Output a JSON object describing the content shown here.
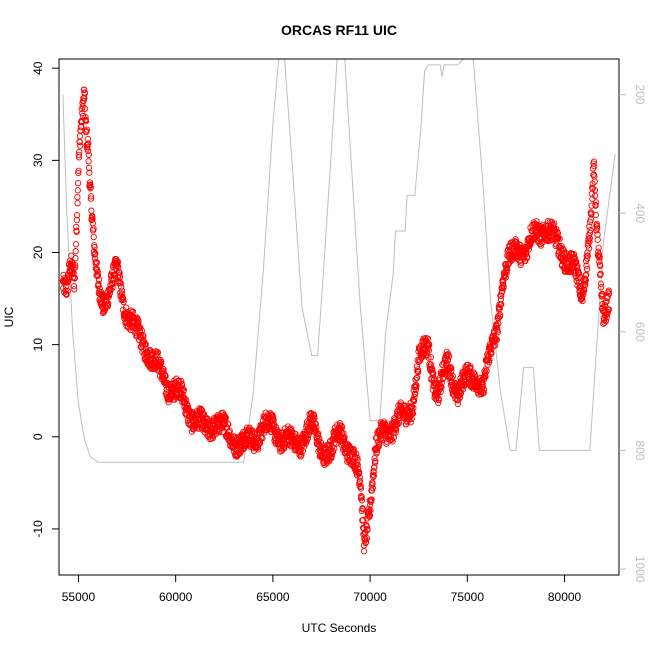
{
  "chart_data": {
    "type": "scatter",
    "title": "ORCAS RF11 UIC",
    "xlabel": "UTC Seconds",
    "ylabel": "UIC",
    "xlim": [
      54000,
      82800
    ],
    "ylim": [
      -15,
      41
    ],
    "x_ticks": [
      55000,
      60000,
      65000,
      70000,
      75000,
      80000
    ],
    "y_ticks": [
      -10,
      0,
      10,
      20,
      30,
      40
    ],
    "grid": false,
    "legend": "none",
    "colors": {
      "points": "#ff0000",
      "overlay": "#bebebe",
      "axes": "#000000"
    },
    "series": [
      {
        "marker": "open-circle",
        "anchors": [
          [
            54200,
            17
          ],
          [
            54400,
            15.5
          ],
          [
            54600,
            18
          ],
          [
            54800,
            16.5
          ],
          [
            54900,
            23
          ],
          [
            55000,
            30
          ],
          [
            55100,
            34
          ],
          [
            55200,
            36
          ],
          [
            55300,
            38
          ],
          [
            55400,
            33
          ],
          [
            55500,
            31
          ],
          [
            55600,
            26
          ],
          [
            55700,
            23
          ],
          [
            55800,
            20
          ],
          [
            56000,
            17
          ],
          [
            56300,
            15
          ],
          [
            56600,
            15.5
          ],
          [
            57000,
            18
          ],
          [
            57300,
            15
          ],
          [
            57600,
            13
          ],
          [
            58000,
            11
          ],
          [
            58500,
            10
          ],
          [
            59000,
            7.5
          ],
          [
            59500,
            6
          ],
          [
            60000,
            5
          ],
          [
            60500,
            3.5
          ],
          [
            61000,
            2
          ],
          [
            61500,
            0.5
          ],
          [
            62000,
            2
          ],
          [
            62500,
            0.5
          ],
          [
            63000,
            0
          ],
          [
            63500,
            -1
          ],
          [
            64000,
            0
          ],
          [
            64500,
            1
          ],
          [
            65000,
            1
          ],
          [
            65500,
            0
          ],
          [
            66000,
            -1
          ],
          [
            66500,
            0
          ],
          [
            67000,
            1
          ],
          [
            67500,
            -1
          ],
          [
            68000,
            -2
          ],
          [
            68500,
            1
          ],
          [
            69000,
            -2
          ],
          [
            69500,
            -5
          ],
          [
            69700,
            -11
          ],
          [
            70000,
            -7
          ],
          [
            70300,
            -2
          ],
          [
            70700,
            1
          ],
          [
            71200,
            1
          ],
          [
            71700,
            2
          ],
          [
            72200,
            4
          ],
          [
            72500,
            8
          ],
          [
            73000,
            10
          ],
          [
            73300,
            6
          ],
          [
            73500,
            4.5
          ],
          [
            74000,
            8
          ],
          [
            74500,
            5
          ],
          [
            75000,
            6
          ],
          [
            75500,
            7
          ],
          [
            75800,
            5
          ],
          [
            76200,
            9
          ],
          [
            76500,
            12
          ],
          [
            76800,
            17
          ],
          [
            77200,
            19
          ],
          [
            77600,
            21
          ],
          [
            78000,
            20
          ],
          [
            78500,
            22
          ],
          [
            79000,
            23
          ],
          [
            79500,
            21
          ],
          [
            80000,
            20
          ],
          [
            80500,
            18
          ],
          [
            80900,
            15
          ],
          [
            81300,
            23
          ],
          [
            81500,
            29
          ],
          [
            81700,
            20
          ],
          [
            82000,
            13
          ],
          [
            82300,
            16
          ]
        ]
      },
      {
        "name": "",
        "axis": "secondary",
        "stroke": "line",
        "y2lim": [
          1010,
          140
        ],
        "y2_ticks": [
          200,
          400,
          600,
          800,
          1000
        ],
        "anchors": [
          [
            54200,
            200
          ],
          [
            54400,
            400
          ],
          [
            54700,
            600
          ],
          [
            55000,
            720
          ],
          [
            55300,
            780
          ],
          [
            55600,
            810
          ],
          [
            56000,
            820
          ],
          [
            58000,
            820
          ],
          [
            61000,
            820
          ],
          [
            63500,
            820
          ],
          [
            64000,
            700
          ],
          [
            64500,
            500
          ],
          [
            65000,
            250
          ],
          [
            65300,
            140
          ],
          [
            65600,
            140
          ],
          [
            66000,
            320
          ],
          [
            66500,
            560
          ],
          [
            67000,
            640
          ],
          [
            67300,
            640
          ],
          [
            67600,
            500
          ],
          [
            68000,
            300
          ],
          [
            68300,
            140
          ],
          [
            68700,
            140
          ],
          [
            69000,
            300
          ],
          [
            69500,
            560
          ],
          [
            70000,
            750
          ],
          [
            70500,
            750
          ],
          [
            70800,
            600
          ],
          [
            71200,
            500
          ],
          [
            71300,
            430
          ],
          [
            71800,
            430
          ],
          [
            71900,
            370
          ],
          [
            72300,
            370
          ],
          [
            72600,
            260
          ],
          [
            72800,
            160
          ],
          [
            73000,
            150
          ],
          [
            73200,
            150
          ],
          [
            73600,
            150
          ],
          [
            73700,
            170
          ],
          [
            73800,
            150
          ],
          [
            74500,
            150
          ],
          [
            74800,
            140
          ],
          [
            75300,
            140
          ],
          [
            75800,
            350
          ],
          [
            76200,
            550
          ],
          [
            76700,
            700
          ],
          [
            77200,
            800
          ],
          [
            77500,
            800
          ],
          [
            77900,
            660
          ],
          [
            78400,
            660
          ],
          [
            78700,
            800
          ],
          [
            80500,
            800
          ],
          [
            81300,
            800
          ],
          [
            81600,
            650
          ],
          [
            82000,
            450
          ],
          [
            82600,
            300
          ]
        ]
      }
    ]
  }
}
